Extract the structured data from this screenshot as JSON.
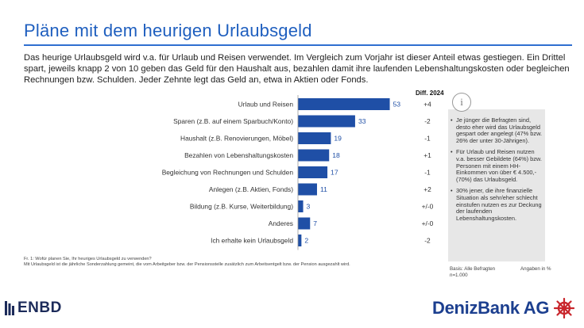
{
  "header": {
    "title": "Pläne mit dem heurigen Urlaubsgeld",
    "intro": "Das heurige Urlaubsgeld wird v.a. für Urlaub und Reisen verwendet. Im Vergleich zum Vorjahr ist dieser Anteil etwas gestiegen. Ein Drittel spart, jeweils knapp 2 von 10 geben das Geld für den Haushalt aus, bezahlen damit ihre laufenden Lebenshaltungskosten oder begleichen Rechnungen bzw. Schulden. Jeder Zehnte legt das Geld an, etwa in Aktien oder Fonds."
  },
  "chart_data": {
    "type": "bar",
    "orientation": "horizontal",
    "categories": [
      "Urlaub und Reisen",
      "Sparen (z.B. auf einem Sparbuch/Konto)",
      "Haushalt (z.B. Renovierungen, Möbel)",
      "Bezahlen von Lebenshaltungskosten",
      "Begleichung von Rechnungen und Schulden",
      "Anlegen (z.B. Aktien, Fonds)",
      "Bildung (z.B. Kurse, Weiterbildung)",
      "Anderes",
      "Ich erhalte kein Urlaubsgeld"
    ],
    "values": [
      53,
      33,
      19,
      18,
      17,
      11,
      3,
      7,
      2
    ],
    "diff_label": "Diff. 2024",
    "diffs": [
      "+4",
      "-2",
      "-1",
      "+1",
      "-1",
      "+2",
      "+/-0",
      "+/-0",
      "-2"
    ],
    "xlim": [
      0,
      60
    ],
    "unit": "Angaben in %",
    "colors": {
      "bar": "#1f4fa6",
      "label": "#1f4fa6"
    }
  },
  "sidebar": {
    "icon": "info-icon",
    "bullets": [
      "Je jünger die Befragten sind, desto eher wird das Urlaubsgeld gespart oder angelegt (47% bzw. 26% der unter 30-Jährigen).",
      "Für Urlaub und Reisen nutzen v.a. besser Gebildete (64%) bzw. Personen mit einem HH-Einkommen von über € 4.500,- (70%) das Urlaubsgeld.",
      "30% jener, die ihre finanzielle Situation als sehr/eher schlecht einstufen nutzen es zur Deckung der laufenden Lebenshaltungskosten."
    ]
  },
  "footer": {
    "question": "Fr. 1: Wofür planen Sie, Ihr heuriges Urlaubsgeld zu verwenden?",
    "note": "Mit Urlaubsgeld ist die jährliche Sonderzahlung gemeint, die vom Arbeitgeber bzw. der Pensionsstelle zusätzlich zum Arbeitsentgelt bzw. der Pension ausgezahlt wird.",
    "basis": "Basis: Alle Befragten",
    "n": "n=1.000",
    "unit": "Angaben in %"
  },
  "logos": {
    "left": "ENBD",
    "right": "DenizBank AG"
  }
}
